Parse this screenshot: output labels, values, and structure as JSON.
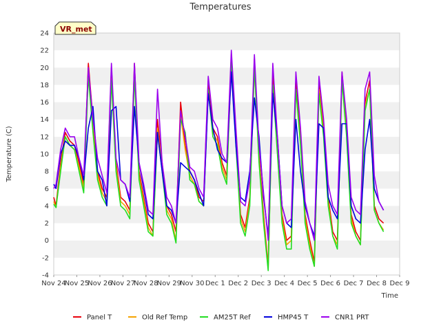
{
  "chart_data": {
    "type": "line",
    "title": "Temperatures",
    "xlabel": "Time",
    "ylabel": "Temperature (C)",
    "badge": "VR_met",
    "ylim": [
      -4,
      24
    ],
    "yticks": [
      -4,
      -2,
      0,
      2,
      4,
      6,
      8,
      10,
      12,
      14,
      16,
      18,
      20,
      22,
      24
    ],
    "x_categories": [
      "Nov 24",
      "Nov 25",
      "Nov 26",
      "Nov 27",
      "Nov 28",
      "Nov 29",
      "Nov 30",
      "Dec 1",
      "Dec 2",
      "Dec 3",
      "Dec 4",
      "Dec 5",
      "Dec 6",
      "Dec 7",
      "Dec 8",
      "Dec 9"
    ],
    "x_unit": "day index from Nov 24",
    "grid": "horizontal bands",
    "legend_position": "bottom",
    "series": [
      {
        "name": "Panel T",
        "color": "#e8000b",
        "x": [
          0.0,
          0.1,
          0.3,
          0.5,
          0.7,
          0.9,
          1.1,
          1.3,
          1.5,
          1.7,
          1.9,
          2.1,
          2.3,
          2.5,
          2.7,
          2.9,
          3.1,
          3.3,
          3.5,
          3.7,
          3.9,
          4.1,
          4.3,
          4.5,
          4.7,
          4.9,
          5.1,
          5.3,
          5.5,
          5.7,
          5.9,
          6.1,
          6.3,
          6.5,
          6.7,
          6.9,
          7.1,
          7.3,
          7.5,
          7.7,
          7.9,
          8.1,
          8.3,
          8.5,
          8.7,
          8.9,
          9.1,
          9.3,
          9.5,
          9.7,
          9.9,
          10.1,
          10.3,
          10.5,
          10.7,
          10.9,
          11.1,
          11.3,
          11.5,
          11.7,
          11.9,
          12.1,
          12.3,
          12.5,
          12.7,
          12.9,
          13.1,
          13.3,
          13.5,
          13.7,
          13.9,
          14.1,
          14.3
        ],
        "values": [
          5.0,
          4.0,
          9.0,
          12.5,
          11.5,
          11.0,
          9.0,
          6.5,
          20.5,
          14.0,
          8.0,
          6.0,
          5.0,
          20.0,
          9.0,
          5.0,
          4.5,
          3.5,
          20.5,
          8.0,
          5.0,
          2.0,
          1.0,
          14.0,
          9.0,
          4.0,
          3.0,
          1.0,
          16.0,
          11.0,
          8.0,
          7.0,
          5.0,
          4.5,
          18.5,
          13.0,
          12.0,
          9.0,
          7.5,
          21.5,
          12.0,
          3.0,
          1.5,
          5.0,
          21.0,
          10.0,
          3.0,
          -3.0,
          19.0,
          11.0,
          3.0,
          0.0,
          0.5,
          18.5,
          12.0,
          3.0,
          0.0,
          -2.5,
          18.0,
          13.0,
          5.0,
          1.0,
          0.0,
          19.5,
          13.0,
          3.0,
          1.0,
          0.0,
          16.0,
          18.5,
          4.0,
          2.5,
          2.0
        ]
      },
      {
        "name": "Old Ref Temp",
        "color": "#f5a300",
        "x": [
          0.0,
          0.1,
          0.3,
          0.5,
          0.7,
          0.9,
          1.1,
          1.3,
          1.5,
          1.7,
          1.9,
          2.1,
          2.3,
          2.5,
          2.7,
          2.9,
          3.1,
          3.3,
          3.5,
          3.7,
          3.9,
          4.1,
          4.3,
          4.5,
          4.7,
          4.9,
          5.1,
          5.3,
          5.5,
          5.7,
          5.9,
          6.1,
          6.3,
          6.5,
          6.7,
          6.9,
          7.1,
          7.3,
          7.5,
          7.7,
          7.9,
          8.1,
          8.3,
          8.5,
          8.7,
          8.9,
          9.1,
          9.3,
          9.5,
          9.7,
          9.9,
          10.1,
          10.3,
          10.5,
          10.7,
          10.9,
          11.1,
          11.3,
          11.5,
          11.7,
          11.9,
          12.1,
          12.3,
          12.5,
          12.7,
          12.9,
          13.1,
          13.3,
          13.5,
          13.7,
          13.9,
          14.1,
          14.3
        ],
        "values": [
          4.5,
          3.8,
          8.5,
          12.0,
          11.0,
          10.5,
          8.5,
          6.0,
          19.5,
          13.0,
          7.5,
          5.5,
          4.5,
          19.0,
          8.5,
          4.5,
          4.0,
          3.0,
          19.5,
          7.5,
          4.5,
          1.5,
          0.5,
          13.0,
          8.5,
          3.5,
          2.5,
          0.0,
          14.5,
          10.5,
          7.5,
          6.5,
          4.5,
          4.0,
          17.5,
          12.5,
          11.5,
          8.5,
          7.0,
          20.5,
          11.5,
          2.5,
          1.0,
          4.5,
          20.0,
          9.5,
          2.5,
          -3.3,
          18.0,
          10.5,
          2.5,
          -0.5,
          0.0,
          17.5,
          11.5,
          2.5,
          -0.5,
          -3.0,
          17.5,
          12.5,
          4.5,
          0.5,
          -0.5,
          18.5,
          12.5,
          2.5,
          0.5,
          -0.5,
          15.5,
          17.5,
          3.5,
          2.0,
          1.2
        ]
      },
      {
        "name": "AM25T Ref",
        "color": "#22dd22",
        "x": [
          0.0,
          0.1,
          0.3,
          0.5,
          0.7,
          0.9,
          1.1,
          1.3,
          1.5,
          1.7,
          1.9,
          2.1,
          2.3,
          2.5,
          2.7,
          2.9,
          3.1,
          3.3,
          3.5,
          3.7,
          3.9,
          4.1,
          4.3,
          4.5,
          4.7,
          4.9,
          5.1,
          5.3,
          5.5,
          5.7,
          5.9,
          6.1,
          6.3,
          6.5,
          6.7,
          6.9,
          7.1,
          7.3,
          7.5,
          7.7,
          7.9,
          8.1,
          8.3,
          8.5,
          8.7,
          8.9,
          9.1,
          9.3,
          9.5,
          9.7,
          9.9,
          10.1,
          10.3,
          10.5,
          10.7,
          10.9,
          11.1,
          11.3,
          11.5,
          11.7,
          11.9,
          12.1,
          12.3,
          12.5,
          12.7,
          12.9,
          13.1,
          13.3,
          13.5,
          13.7,
          13.9,
          14.1,
          14.3
        ],
        "values": [
          4.2,
          3.8,
          8.0,
          12.0,
          11.0,
          10.5,
          8.0,
          5.5,
          19.0,
          12.5,
          7.0,
          5.0,
          4.0,
          18.5,
          8.0,
          4.0,
          3.5,
          2.5,
          19.0,
          7.0,
          4.0,
          1.0,
          0.5,
          12.5,
          8.0,
          3.0,
          2.0,
          -0.3,
          14.0,
          12.5,
          7.0,
          6.5,
          4.5,
          4.0,
          17.5,
          12.0,
          11.0,
          8.0,
          6.5,
          21.0,
          11.0,
          2.0,
          0.5,
          4.0,
          20.0,
          9.0,
          2.0,
          -3.5,
          18.0,
          10.0,
          2.0,
          -1.0,
          -1.0,
          17.5,
          11.0,
          2.0,
          -1.0,
          -3.0,
          17.0,
          12.0,
          4.0,
          0.5,
          -1.0,
          18.5,
          12.0,
          2.0,
          0.5,
          -0.5,
          15.0,
          17.5,
          3.5,
          2.0,
          1.0
        ]
      },
      {
        "name": "HMP45 T",
        "color": "#0000dd",
        "x": [
          0.0,
          0.1,
          0.3,
          0.5,
          0.7,
          0.9,
          1.1,
          1.3,
          1.5,
          1.7,
          1.9,
          2.1,
          2.3,
          2.5,
          2.7,
          2.9,
          3.1,
          3.3,
          3.5,
          3.7,
          3.9,
          4.1,
          4.3,
          4.5,
          4.7,
          4.9,
          5.1,
          5.3,
          5.5,
          5.7,
          5.9,
          6.1,
          6.3,
          6.5,
          6.7,
          6.9,
          7.1,
          7.3,
          7.5,
          7.7,
          7.9,
          8.1,
          8.3,
          8.5,
          8.7,
          8.9,
          9.1,
          9.3,
          9.5,
          9.7,
          9.9,
          10.1,
          10.3,
          10.5,
          10.7,
          10.9,
          11.1,
          11.3,
          11.5,
          11.7,
          11.9,
          12.1,
          12.3,
          12.5,
          12.7,
          12.9,
          13.1,
          13.3,
          13.5,
          13.7,
          13.9,
          14.1,
          14.3
        ],
        "values": [
          6.5,
          6.0,
          10.0,
          11.5,
          11.0,
          11.0,
          9.5,
          7.0,
          13.0,
          15.5,
          8.0,
          7.0,
          4.0,
          15.0,
          15.5,
          7.0,
          6.5,
          4.5,
          15.5,
          9.0,
          6.0,
          3.0,
          2.5,
          12.5,
          8.0,
          4.0,
          3.5,
          2.0,
          9.0,
          8.5,
          8.0,
          7.0,
          5.5,
          4.0,
          17.0,
          13.0,
          10.5,
          9.5,
          9.0,
          19.5,
          11.0,
          5.0,
          4.5,
          8.0,
          16.5,
          12.0,
          5.0,
          0.5,
          17.0,
          12.0,
          4.0,
          2.0,
          1.5,
          14.0,
          8.0,
          4.0,
          2.0,
          0.5,
          13.5,
          13.0,
          5.0,
          3.5,
          2.5,
          13.5,
          13.5,
          4.0,
          2.5,
          2.0,
          10.5,
          14.0,
          6.0,
          4.5,
          3.5
        ]
      },
      {
        "name": "CNR1 PRT",
        "color": "#9b00ee",
        "x": [
          0.0,
          0.1,
          0.3,
          0.5,
          0.7,
          0.9,
          1.1,
          1.3,
          1.5,
          1.7,
          1.9,
          2.1,
          2.3,
          2.5,
          2.7,
          2.9,
          3.1,
          3.3,
          3.5,
          3.7,
          3.9,
          4.1,
          4.3,
          4.5,
          4.7,
          4.9,
          5.1,
          5.3,
          5.5,
          5.7,
          5.9,
          6.1,
          6.3,
          6.5,
          6.7,
          6.9,
          7.1,
          7.3,
          7.5,
          7.7,
          7.9,
          8.1,
          8.3,
          8.5,
          8.7,
          8.9,
          9.1,
          9.3,
          9.5,
          9.7,
          9.9,
          10.1,
          10.3,
          10.5,
          10.7,
          10.9,
          11.1,
          11.3,
          11.5,
          11.7,
          11.9,
          12.1,
          12.3,
          12.5,
          12.7,
          12.9,
          13.1,
          13.3,
          13.5,
          13.7,
          13.9,
          14.1,
          14.3
        ],
        "values": [
          6.0,
          6.5,
          10.5,
          13.0,
          12.0,
          12.0,
          9.5,
          7.5,
          20.0,
          14.0,
          9.5,
          7.5,
          5.5,
          20.5,
          9.5,
          7.0,
          6.5,
          5.0,
          20.5,
          9.0,
          6.5,
          3.5,
          3.0,
          17.5,
          9.0,
          5.0,
          4.0,
          2.0,
          15.0,
          12.0,
          8.5,
          8.0,
          6.0,
          5.0,
          19.0,
          14.0,
          13.0,
          10.0,
          9.0,
          22.0,
          13.0,
          4.5,
          4.0,
          7.0,
          21.5,
          11.0,
          5.5,
          0.0,
          20.5,
          12.0,
          4.0,
          2.0,
          2.5,
          19.5,
          13.0,
          4.5,
          2.0,
          0.0,
          19.0,
          14.0,
          6.5,
          4.0,
          3.0,
          19.5,
          14.0,
          5.0,
          3.5,
          3.0,
          17.5,
          19.5,
          7.5,
          4.5,
          3.5
        ]
      }
    ]
  }
}
